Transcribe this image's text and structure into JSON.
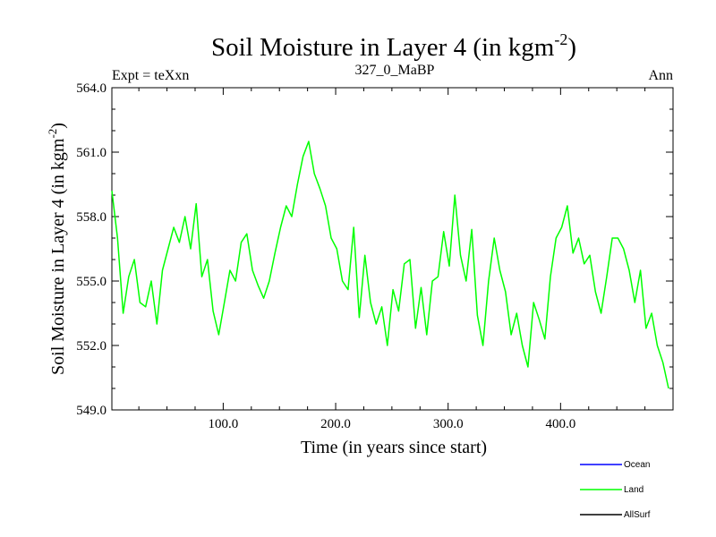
{
  "chart_data": {
    "type": "line",
    "title": "Soil Moisture in Layer 4 (in kgm",
    "title_sup": "-2",
    "title_close": ")",
    "subtitle_left": "Expt = teXxn",
    "subtitle_center": "327_0_MaBP",
    "subtitle_right": "Ann",
    "xlabel": "Time (in years since start)",
    "ylabel": "Soil Moisture in Layer 4 (in kgm",
    "ylabel_sup": "-2",
    "ylabel_close": ")",
    "xlim": [
      1,
      500
    ],
    "ylim": [
      549.0,
      564.0
    ],
    "xticks": [
      100,
      200,
      300,
      400
    ],
    "xtick_labels": [
      "100.0",
      "200.0",
      "300.0",
      "400.0"
    ],
    "yticks": [
      549,
      552,
      555,
      558,
      561,
      564
    ],
    "ytick_labels": [
      "549.0",
      "552.0",
      "555.0",
      "558.0",
      "561.0",
      "564.0"
    ],
    "legend_position": "bottom-right",
    "legend": [
      {
        "name": "Ocean",
        "color": "#0000ff"
      },
      {
        "name": "Land",
        "color": "#00ff00"
      },
      {
        "name": "AllSurf",
        "color": "#000000"
      }
    ],
    "series": [
      {
        "name": "Land",
        "color": "#00ff00",
        "x_start": 1,
        "x_step": 5,
        "values": [
          559.2,
          557.0,
          553.5,
          555.2,
          556.0,
          554.0,
          553.8,
          555.0,
          553.0,
          555.5,
          556.5,
          557.5,
          556.8,
          558.0,
          556.5,
          558.6,
          555.2,
          556.0,
          553.6,
          552.5,
          554.0,
          555.5,
          555.0,
          556.8,
          557.2,
          555.5,
          554.8,
          554.2,
          555.0,
          556.3,
          557.5,
          558.5,
          558.0,
          559.5,
          560.8,
          561.5,
          560.0,
          559.3,
          558.5,
          557.0,
          556.5,
          555.0,
          554.6,
          557.5,
          553.3,
          556.2,
          554.0,
          553.0,
          553.8,
          552.0,
          554.6,
          553.6,
          555.8,
          556.0,
          552.8,
          554.7,
          552.5,
          555.0,
          555.2,
          557.3,
          555.7,
          559.0,
          556.2,
          555.0,
          557.4,
          553.4,
          552.0,
          555.0,
          557.0,
          555.5,
          554.5,
          552.5,
          553.5,
          552.0,
          551.0,
          554.0,
          553.2,
          552.3,
          555.2,
          557.0,
          557.5,
          558.5,
          556.3,
          557.0,
          555.8,
          556.2,
          554.5,
          553.5,
          555.2,
          557.0,
          557.0,
          556.5,
          555.5,
          554.0,
          555.5,
          552.8,
          553.5,
          552.0,
          551.2,
          550.0
        ]
      }
    ]
  }
}
